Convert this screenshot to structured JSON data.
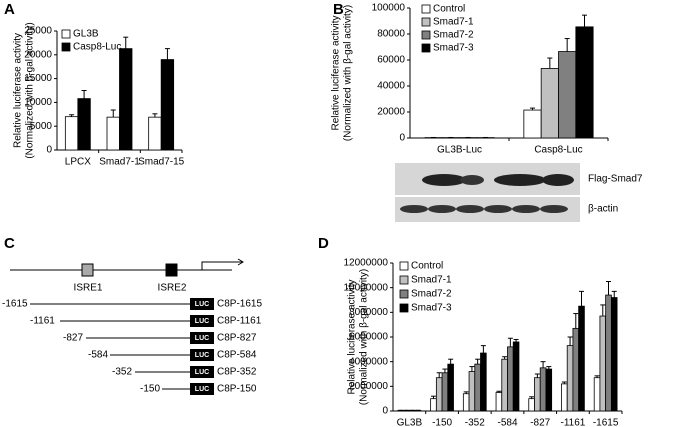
{
  "panels": [
    "A",
    "B",
    "C",
    "D"
  ],
  "chart_data": [
    {
      "type": "bar",
      "ylabel": [
        "Relative luciferase activity",
        "(Normalized with β-gal activity)"
      ],
      "categories": [
        "LPCX",
        "Smad7-1",
        "Smad7-15"
      ],
      "series": [
        {
          "name": "GL3B",
          "color": "#ffffff",
          "values": [
            7000,
            6900,
            6900
          ],
          "errors": [
            400,
            1500,
            700
          ]
        },
        {
          "name": "Casp8-Luc",
          "color": "#000000",
          "values": [
            10800,
            21300,
            19000
          ],
          "errors": [
            1700,
            2400,
            2300
          ]
        }
      ],
      "ylim": [
        0,
        25000
      ],
      "yticks": [
        0,
        5000,
        10000,
        15000,
        20000,
        25000
      ],
      "legend": "upper left"
    },
    {
      "type": "bar",
      "ylabel": [
        "Relative luciferase activity",
        "(Normalized with β-gal activity)"
      ],
      "categories": [
        "GL3B-Luc",
        "Casp8-Luc"
      ],
      "series": [
        {
          "name": "Control",
          "color": "#ffffff",
          "values": [
            300,
            21500
          ],
          "errors": [
            100,
            1500
          ]
        },
        {
          "name": "Smad7-1",
          "color": "#c0c0c0",
          "values": [
            300,
            53500
          ],
          "errors": [
            100,
            8000
          ]
        },
        {
          "name": "Smad7-2",
          "color": "#808080",
          "values": [
            300,
            66500
          ],
          "errors": [
            100,
            10000
          ]
        },
        {
          "name": "Smad7-3",
          "color": "#000000",
          "values": [
            300,
            85500
          ],
          "errors": [
            100,
            9000
          ]
        }
      ],
      "ylim": [
        0,
        100000
      ],
      "yticks": [
        0,
        20000,
        40000,
        60000,
        80000,
        100000
      ],
      "legend": "upper left"
    },
    {
      "type": "bar",
      "ylabel": [
        "Relative luciferase activity",
        "(Normalized with β-gal activity)"
      ],
      "categories": [
        "GL3B",
        "-150",
        "-352",
        "-584",
        "-827",
        "-1161",
        "-1615"
      ],
      "series": [
        {
          "name": "Control",
          "color": "#ffffff",
          "values": [
            50000,
            1000000,
            1400000,
            1500000,
            1000000,
            2200000,
            2700000
          ],
          "errors": [
            10000,
            200000,
            150000,
            100000,
            150000,
            150000,
            150000
          ]
        },
        {
          "name": "Smad7-1",
          "color": "#c0c0c0",
          "values": [
            50000,
            2700000,
            3200000,
            4200000,
            2700000,
            5300000,
            7700000
          ],
          "errors": [
            10000,
            400000,
            400000,
            200000,
            300000,
            700000,
            900000
          ]
        },
        {
          "name": "Smad7-2",
          "color": "#808080",
          "values": [
            50000,
            3100000,
            3800000,
            5200000,
            3500000,
            6700000,
            9400000
          ],
          "errors": [
            10000,
            300000,
            400000,
            700000,
            500000,
            1200000,
            1100000
          ]
        },
        {
          "name": "Smad7-3",
          "color": "#000000",
          "values": [
            50000,
            3800000,
            4700000,
            5600000,
            3400000,
            8500000,
            9200000
          ],
          "errors": [
            10000,
            400000,
            600000,
            200000,
            200000,
            1200000,
            500000
          ]
        }
      ],
      "ylim": [
        0,
        12000000
      ],
      "yticks": [
        0,
        2000000,
        4000000,
        6000000,
        8000000,
        10000000,
        12000000
      ],
      "legend": "upper left"
    }
  ],
  "blot": {
    "labels": [
      "Flag-Smad7",
      "β-actin"
    ]
  },
  "diagram": {
    "elements": [
      "ISRE1",
      "ISRE2"
    ],
    "constructs": [
      {
        "start": "-1615",
        "reporter": "LUC",
        "name": "C8P-1615"
      },
      {
        "start": "-1161",
        "reporter": "LUC",
        "name": "C8P-1161"
      },
      {
        "start": "-827",
        "reporter": "LUC",
        "name": "C8P-827"
      },
      {
        "start": "-584",
        "reporter": "LUC",
        "name": "C8P-584"
      },
      {
        "start": "-352",
        "reporter": "LUC",
        "name": "C8P-352"
      },
      {
        "start": "-150",
        "reporter": "LUC",
        "name": "C8P-150"
      }
    ]
  }
}
